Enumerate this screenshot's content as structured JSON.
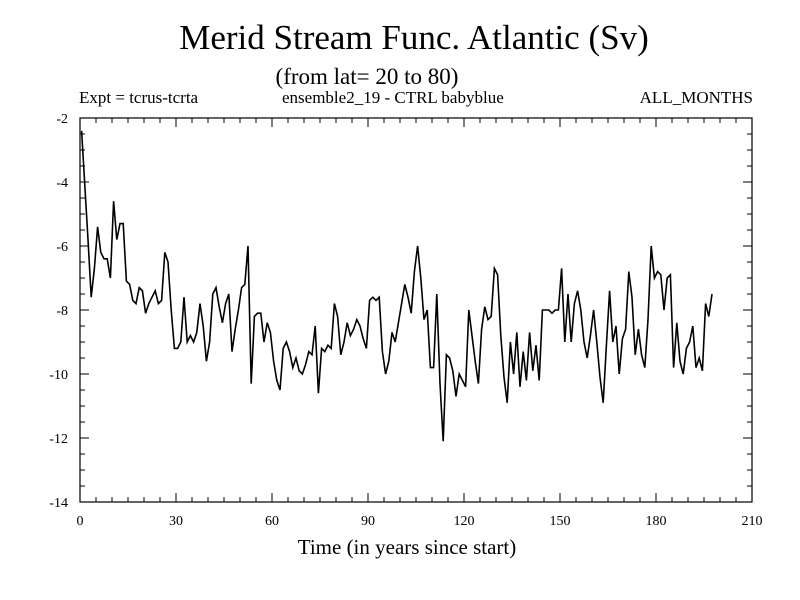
{
  "chart_data": {
    "type": "line",
    "title": "Merid Stream Func. Atlantic (Sv)",
    "subtitle": "(from lat= 20 to 80)",
    "header_left": "Expt = tcrus-tcrta",
    "header_mid": "ensemble2_19 - CTRL babyblue",
    "header_right": "ALL_MONTHS",
    "xlabel": "Time (in years since start)",
    "ylabel": "",
    "xlim": [
      0,
      210
    ],
    "ylim": [
      -14,
      -2
    ],
    "xticks": [
      0,
      30,
      60,
      90,
      120,
      150,
      180,
      210
    ],
    "yticks": [
      -2,
      -4,
      -6,
      -8,
      -10,
      -12,
      -14
    ],
    "x_minor_step": 5,
    "y_minor_step": 0.5,
    "series": [
      {
        "name": "Merid Stream Func.",
        "color": "#000000",
        "x_start": 0.5,
        "x_step": 1,
        "values": [
          -2.4,
          -4.1,
          -5.8,
          -7.6,
          -6.7,
          -5.4,
          -6.2,
          -6.4,
          -6.4,
          -7.0,
          -4.6,
          -5.8,
          -5.3,
          -5.3,
          -7.1,
          -7.2,
          -7.7,
          -7.8,
          -7.3,
          -7.4,
          -8.1,
          -7.8,
          -7.6,
          -7.4,
          -7.8,
          -7.7,
          -6.2,
          -6.5,
          -8.0,
          -9.2,
          -9.2,
          -9.0,
          -7.6,
          -9.0,
          -8.8,
          -9.0,
          -8.7,
          -7.8,
          -8.5,
          -9.6,
          -9.0,
          -7.5,
          -7.3,
          -7.9,
          -8.4,
          -7.8,
          -7.5,
          -9.3,
          -8.6,
          -8.0,
          -7.3,
          -7.2,
          -6.0,
          -10.3,
          -8.2,
          -8.1,
          -8.1,
          -9.0,
          -8.4,
          -8.7,
          -9.6,
          -10.2,
          -10.5,
          -9.2,
          -9.0,
          -9.3,
          -9.8,
          -9.5,
          -9.9,
          -10.0,
          -9.7,
          -9.3,
          -9.4,
          -8.5,
          -10.6,
          -9.2,
          -9.3,
          -9.1,
          -9.2,
          -7.8,
          -8.2,
          -9.4,
          -9.0,
          -8.4,
          -8.8,
          -8.6,
          -8.3,
          -8.5,
          -8.9,
          -9.2,
          -7.7,
          -7.6,
          -7.7,
          -7.6,
          -9.3,
          -10.0,
          -9.6,
          -8.7,
          -9.0,
          -8.4,
          -7.8,
          -7.2,
          -7.6,
          -8.1,
          -6.8,
          -6.0,
          -7.0,
          -8.3,
          -8.0,
          -9.8,
          -9.8,
          -7.5,
          -10.3,
          -12.1,
          -9.4,
          -9.5,
          -9.9,
          -10.7,
          -10.0,
          -10.2,
          -10.4,
          -8.0,
          -8.8,
          -9.6,
          -10.3,
          -8.6,
          -7.9,
          -8.3,
          -8.2,
          -6.7,
          -6.9,
          -8.8,
          -10.1,
          -10.9,
          -9.0,
          -10.0,
          -8.7,
          -10.4,
          -9.3,
          -10.2,
          -8.7,
          -9.9,
          -9.1,
          -10.2,
          -8.0,
          -8.0,
          -8.0,
          -8.1,
          -8.0,
          -8.0,
          -6.7,
          -9.0,
          -7.5,
          -9.0,
          -7.8,
          -7.4,
          -8.0,
          -9.0,
          -9.5,
          -8.8,
          -8.0,
          -9.0,
          -10.1,
          -10.9,
          -9.1,
          -7.4,
          -9.0,
          -8.5,
          -10.0,
          -8.9,
          -8.6,
          -6.8,
          -7.6,
          -9.4,
          -8.6,
          -9.4,
          -9.8,
          -8.3,
          -6.0,
          -7.0,
          -6.8,
          -6.9,
          -8.0,
          -7.0,
          -6.9,
          -9.8,
          -8.4,
          -9.6,
          -10.0,
          -9.2,
          -9.0,
          -8.5,
          -9.8,
          -9.5,
          -9.9,
          -7.8,
          -8.2,
          -7.5
        ]
      }
    ]
  }
}
